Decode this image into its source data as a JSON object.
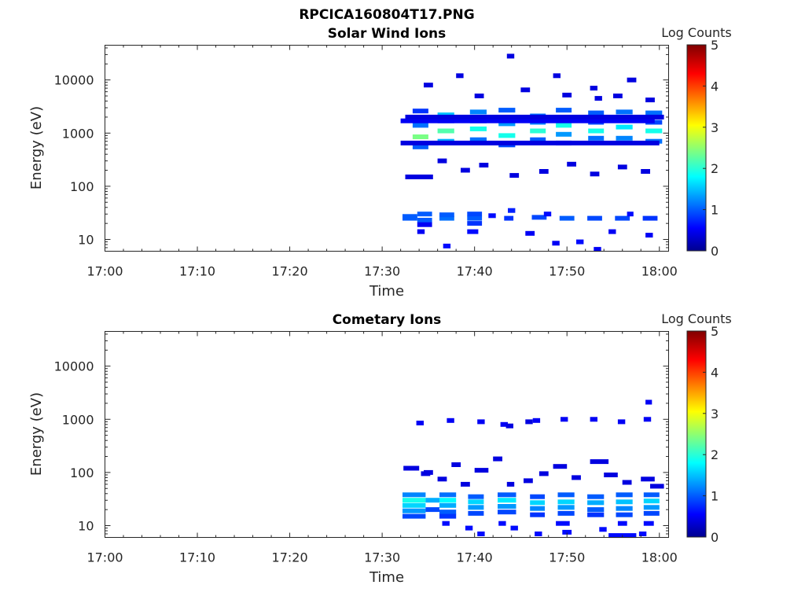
{
  "figure_title": "RPCICA160804T17.PNG",
  "chart_data": [
    {
      "type": "heatmap",
      "title": "Solar Wind Ions",
      "xlabel": "Time",
      "ylabel": "Energy (eV)",
      "x_ticks": [
        "17:00",
        "17:10",
        "17:20",
        "17:30",
        "17:40",
        "17:50",
        "18:00"
      ],
      "x_range_minutes": [
        0,
        61
      ],
      "y_ticks": [
        "10",
        "100",
        "1000",
        "10000"
      ],
      "y_scale": "log",
      "y_range": [
        6,
        45000
      ],
      "colorbar": {
        "label": "Log Counts",
        "ticks": [
          "0",
          "1",
          "2",
          "3",
          "4",
          "5"
        ],
        "range": [
          0,
          5
        ],
        "colormap": "jet"
      },
      "cells": [
        [
          32.2,
          33.8,
          25,
          1.0
        ],
        [
          32.2,
          33.8,
          27,
          1.0
        ],
        [
          33.8,
          35.4,
          23,
          1.0
        ],
        [
          33.8,
          35.4,
          30,
          1.0
        ],
        [
          33.8,
          35.4,
          19,
          0.5
        ],
        [
          36.2,
          37.8,
          25,
          1.1
        ],
        [
          36.2,
          37.8,
          29,
          1.0
        ],
        [
          39.2,
          40.8,
          25,
          1.0
        ],
        [
          39.2,
          40.8,
          20,
          0.8
        ],
        [
          39.2,
          40.8,
          30,
          0.9
        ],
        [
          43.2,
          44.2,
          25,
          0.8
        ],
        [
          46.2,
          47.8,
          26,
          0.9
        ],
        [
          49.2,
          50.8,
          25,
          1.0
        ],
        [
          52.2,
          53.8,
          25,
          0.9
        ],
        [
          55.2,
          56.8,
          25,
          0.9
        ],
        [
          58.2,
          59.8,
          25,
          0.8
        ],
        [
          43.6,
          44.4,
          35,
          0.7
        ],
        [
          47.5,
          48.3,
          30,
          0.6
        ],
        [
          41.5,
          42.3,
          28,
          0.6
        ],
        [
          56.5,
          57.2,
          30,
          0.6
        ],
        [
          36.6,
          37.4,
          7.5,
          0.6
        ],
        [
          33.8,
          34.6,
          14,
          0.5
        ],
        [
          39.2,
          40.4,
          14,
          0.6
        ],
        [
          45.5,
          46.5,
          13,
          0.5
        ],
        [
          48.4,
          49.2,
          8.5,
          0.5
        ],
        [
          51.0,
          51.8,
          9,
          0.6
        ],
        [
          54.5,
          55.3,
          14,
          0.5
        ],
        [
          58.5,
          59.3,
          12,
          0.5
        ],
        [
          52.9,
          53.7,
          6.5,
          0.5
        ],
        [
          33.3,
          35.0,
          1400,
          1.1
        ],
        [
          33.3,
          35.0,
          850,
          2.4
        ],
        [
          33.3,
          35.0,
          550,
          1.0
        ],
        [
          33.3,
          35.0,
          2600,
          0.8
        ],
        [
          36.0,
          37.8,
          2200,
          1.5
        ],
        [
          36.0,
          37.8,
          1100,
          2.2
        ],
        [
          36.0,
          37.8,
          700,
          1.4
        ],
        [
          36.0,
          37.8,
          1700,
          1.0
        ],
        [
          39.5,
          41.3,
          2500,
          1.2
        ],
        [
          39.5,
          41.3,
          1200,
          1.9
        ],
        [
          39.5,
          41.3,
          750,
          1.1
        ],
        [
          39.5,
          41.3,
          1700,
          0.9
        ],
        [
          42.6,
          44.4,
          2700,
          1.0
        ],
        [
          42.6,
          44.4,
          1500,
          1.3
        ],
        [
          42.6,
          44.4,
          900,
          1.9
        ],
        [
          42.6,
          44.4,
          600,
          0.9
        ],
        [
          46.0,
          47.7,
          2100,
          1.1
        ],
        [
          46.0,
          47.7,
          1100,
          2.0
        ],
        [
          46.0,
          47.7,
          750,
          1.0
        ],
        [
          46.0,
          47.7,
          1600,
          1.2
        ],
        [
          48.8,
          50.5,
          2700,
          1.0
        ],
        [
          48.8,
          50.5,
          1400,
          1.9
        ],
        [
          48.8,
          50.5,
          950,
          1.3
        ],
        [
          48.8,
          50.5,
          650,
          0.8
        ],
        [
          52.3,
          54.0,
          2400,
          1.0
        ],
        [
          52.3,
          54.0,
          1100,
          1.9
        ],
        [
          52.3,
          54.0,
          800,
          1.1
        ],
        [
          52.3,
          54.0,
          1600,
          0.9
        ],
        [
          55.3,
          57.1,
          2500,
          1.1
        ],
        [
          55.3,
          57.1,
          1300,
          1.7
        ],
        [
          55.3,
          57.1,
          800,
          1.2
        ],
        [
          55.3,
          57.1,
          1800,
          1.0
        ],
        [
          58.5,
          60.3,
          2400,
          1.1
        ],
        [
          58.5,
          60.3,
          1100,
          1.9
        ],
        [
          58.5,
          60.3,
          700,
          1.1
        ],
        [
          58.5,
          60.3,
          1600,
          0.9
        ],
        [
          32.0,
          59.5,
          1700,
          0.5
        ],
        [
          32.0,
          60.0,
          650,
          0.4
        ],
        [
          32.5,
          60.5,
          2000,
          0.4
        ],
        [
          36.0,
          37.0,
          300,
          0.4
        ],
        [
          40.5,
          41.5,
          250,
          0.4
        ],
        [
          43.8,
          44.8,
          160,
          0.4
        ],
        [
          47.0,
          48.0,
          190,
          0.4
        ],
        [
          50.0,
          51.0,
          260,
          0.4
        ],
        [
          52.5,
          53.5,
          170,
          0.4
        ],
        [
          55.5,
          56.5,
          230,
          0.4
        ],
        [
          58.0,
          59.0,
          190,
          0.4
        ],
        [
          32.5,
          35.5,
          150,
          0.4
        ],
        [
          38.5,
          39.5,
          200,
          0.4
        ],
        [
          34.5,
          35.5,
          8000,
          0.4
        ],
        [
          38.0,
          38.8,
          12000,
          0.4
        ],
        [
          43.5,
          44.3,
          28000,
          0.4
        ],
        [
          48.5,
          49.3,
          12000,
          0.4
        ],
        [
          52.5,
          53.3,
          7000,
          0.4
        ],
        [
          56.5,
          57.5,
          10000,
          0.4
        ],
        [
          55.0,
          56.0,
          5000,
          0.4
        ],
        [
          58.5,
          59.5,
          4200,
          0.4
        ],
        [
          40.0,
          41.0,
          5000,
          0.4
        ],
        [
          45.0,
          46.0,
          6500,
          0.4
        ],
        [
          49.5,
          50.5,
          5200,
          0.4
        ],
        [
          53.0,
          53.8,
          4500,
          0.4
        ]
      ]
    },
    {
      "type": "heatmap",
      "title": "Cometary Ions",
      "xlabel": "Time",
      "ylabel": "Energy (eV)",
      "x_ticks": [
        "17:00",
        "17:10",
        "17:20",
        "17:30",
        "17:40",
        "17:50",
        "18:00"
      ],
      "x_range_minutes": [
        0,
        61
      ],
      "y_ticks": [
        "10",
        "100",
        "1000",
        "10000"
      ],
      "y_scale": "log",
      "y_range": [
        6,
        45000
      ],
      "colorbar": {
        "label": "Log Counts",
        "ticks": [
          "0",
          "1",
          "2",
          "3",
          "4",
          "5"
        ],
        "range": [
          0,
          5
        ],
        "colormap": "jet"
      },
      "cells": [
        [
          32.2,
          34.7,
          38,
          1.2
        ],
        [
          32.2,
          34.7,
          30,
          1.9
        ],
        [
          32.2,
          34.7,
          24,
          1.6
        ],
        [
          32.2,
          34.7,
          19,
          1.3
        ],
        [
          32.2,
          34.7,
          15,
          0.9
        ],
        [
          34.7,
          36.2,
          30,
          1.4
        ],
        [
          34.7,
          36.2,
          20,
          0.9
        ],
        [
          36.2,
          38.0,
          38,
          1.1
        ],
        [
          36.2,
          38.0,
          30,
          1.8
        ],
        [
          36.2,
          38.0,
          24,
          1.4
        ],
        [
          36.2,
          38.0,
          18,
          1.0
        ],
        [
          36.2,
          38.0,
          15,
          0.8
        ],
        [
          39.3,
          41.0,
          35,
          1.0
        ],
        [
          39.3,
          41.0,
          28,
          1.6
        ],
        [
          39.3,
          41.0,
          22,
          1.3
        ],
        [
          39.3,
          41.0,
          17,
          0.9
        ],
        [
          42.5,
          44.5,
          38,
          1.0
        ],
        [
          42.5,
          44.5,
          30,
          1.7
        ],
        [
          42.5,
          44.5,
          23,
          1.3
        ],
        [
          42.5,
          44.5,
          18,
          0.9
        ],
        [
          46.0,
          47.6,
          35,
          0.9
        ],
        [
          46.0,
          47.6,
          27,
          1.6
        ],
        [
          46.0,
          47.6,
          21,
          1.2
        ],
        [
          46.0,
          47.6,
          16,
          0.8
        ],
        [
          49.0,
          50.8,
          38,
          1.0
        ],
        [
          49.0,
          50.8,
          28,
          1.6
        ],
        [
          49.0,
          50.8,
          22,
          1.3
        ],
        [
          49.0,
          50.8,
          17,
          0.9
        ],
        [
          52.2,
          54.0,
          35,
          1.0
        ],
        [
          52.2,
          54.0,
          27,
          1.4
        ],
        [
          52.2,
          54.0,
          20,
          1.0
        ],
        [
          52.2,
          54.0,
          16,
          0.8
        ],
        [
          55.3,
          57.1,
          38,
          1.0
        ],
        [
          55.3,
          57.1,
          28,
          1.5
        ],
        [
          55.3,
          57.1,
          21,
          1.2
        ],
        [
          55.3,
          57.1,
          16,
          0.9
        ],
        [
          58.3,
          60.0,
          38,
          1.0
        ],
        [
          58.3,
          60.0,
          29,
          1.6
        ],
        [
          58.3,
          60.0,
          22,
          1.3
        ],
        [
          58.3,
          60.0,
          17,
          0.9
        ],
        [
          36.5,
          37.3,
          11,
          0.6
        ],
        [
          39.0,
          39.8,
          9,
          0.6
        ],
        [
          40.3,
          41.1,
          7,
          0.6
        ],
        [
          42.6,
          43.4,
          11,
          0.6
        ],
        [
          43.9,
          44.7,
          9,
          0.6
        ],
        [
          46.5,
          47.3,
          7,
          0.6
        ],
        [
          48.8,
          50.3,
          11,
          0.6
        ],
        [
          49.5,
          50.5,
          7.5,
          0.6
        ],
        [
          53.5,
          54.3,
          8.5,
          0.6
        ],
        [
          54.5,
          57.5,
          6.5,
          0.6
        ],
        [
          55.5,
          56.5,
          11,
          0.6
        ],
        [
          58.3,
          59.4,
          11,
          0.6
        ],
        [
          57.8,
          58.6,
          7,
          0.6
        ],
        [
          32.3,
          34.0,
          120,
          0.4
        ],
        [
          34.2,
          35.2,
          95,
          0.4
        ],
        [
          36.0,
          37.0,
          75,
          0.4
        ],
        [
          38.5,
          39.5,
          60,
          0.4
        ],
        [
          40.0,
          41.5,
          110,
          0.4
        ],
        [
          42.0,
          43.0,
          180,
          0.4
        ],
        [
          43.5,
          44.3,
          60,
          0.4
        ],
        [
          45.3,
          46.3,
          70,
          0.4
        ],
        [
          47.0,
          48.0,
          95,
          0.4
        ],
        [
          48.5,
          50.0,
          130,
          0.4
        ],
        [
          50.5,
          51.5,
          80,
          0.4
        ],
        [
          52.5,
          54.5,
          160,
          0.4
        ],
        [
          54.0,
          55.5,
          90,
          0.4
        ],
        [
          56.0,
          57.0,
          65,
          0.4
        ],
        [
          58.0,
          59.5,
          75,
          0.4
        ],
        [
          59.0,
          60.5,
          55,
          0.4
        ],
        [
          37.5,
          38.5,
          140,
          0.4
        ],
        [
          34.5,
          35.5,
          100,
          0.4
        ],
        [
          33.7,
          34.5,
          850,
          0.5
        ],
        [
          37.0,
          37.8,
          950,
          0.5
        ],
        [
          40.3,
          41.1,
          900,
          0.5
        ],
        [
          42.8,
          43.6,
          800,
          0.5
        ],
        [
          46.3,
          47.1,
          950,
          0.5
        ],
        [
          49.3,
          50.1,
          1000,
          0.5
        ],
        [
          52.5,
          53.3,
          1000,
          0.5
        ],
        [
          55.5,
          56.3,
          900,
          0.5
        ],
        [
          58.3,
          59.1,
          1000,
          0.5
        ],
        [
          58.5,
          59.2,
          2100,
          0.5
        ],
        [
          45.5,
          46.3,
          900,
          0.4
        ],
        [
          43.4,
          44.2,
          750,
          0.4
        ]
      ]
    }
  ]
}
